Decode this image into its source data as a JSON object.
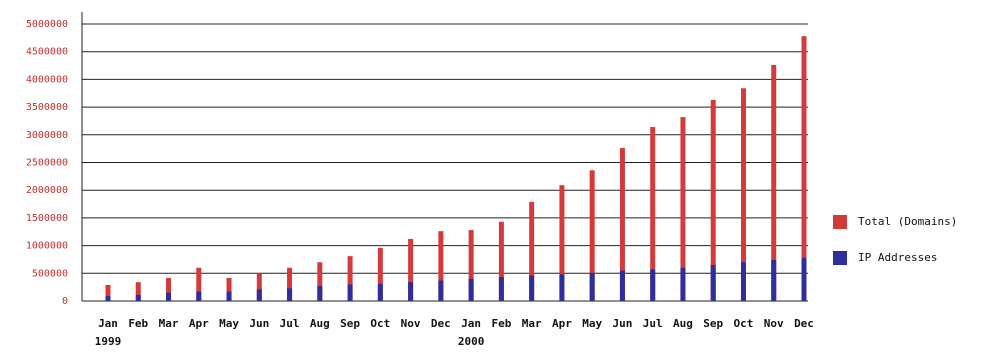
{
  "chart_data": {
    "type": "bar",
    "overlay": true,
    "categories": [
      "Jan",
      "Feb",
      "Mar",
      "Apr",
      "May",
      "Jun",
      "Jul",
      "Aug",
      "Sep",
      "Oct",
      "Nov",
      "Dec",
      "Jan",
      "Feb",
      "Mar",
      "Apr",
      "May",
      "Jun",
      "Jul",
      "Aug",
      "Sep",
      "Oct",
      "Nov",
      "Dec"
    ],
    "years": [
      "1999",
      "2000"
    ],
    "series": [
      {
        "name": "Total (Domains)",
        "color": "#d43a3a",
        "values": [
          290000,
          340000,
          415000,
          600000,
          415000,
          490000,
          600000,
          700000,
          810000,
          960000,
          1120000,
          1260000,
          1280000,
          1430000,
          1790000,
          2090000,
          2360000,
          2760000,
          3140000,
          3320000,
          3630000,
          3840000,
          4260000,
          4780000
        ]
      },
      {
        "name": "IP Addresses",
        "color": "#2e2e9e",
        "values": [
          90000,
          110000,
          150000,
          170000,
          170000,
          210000,
          230000,
          270000,
          300000,
          310000,
          340000,
          370000,
          400000,
          430000,
          460000,
          480000,
          510000,
          550000,
          570000,
          600000,
          650000,
          700000,
          740000,
          780000
        ]
      }
    ],
    "ylim": [
      0,
      5000000
    ],
    "yticks": [
      0,
      500000,
      1000000,
      1500000,
      2000000,
      2500000,
      3000000,
      3500000,
      4000000,
      4500000,
      5000000
    ],
    "grid": true,
    "legend": "right"
  }
}
